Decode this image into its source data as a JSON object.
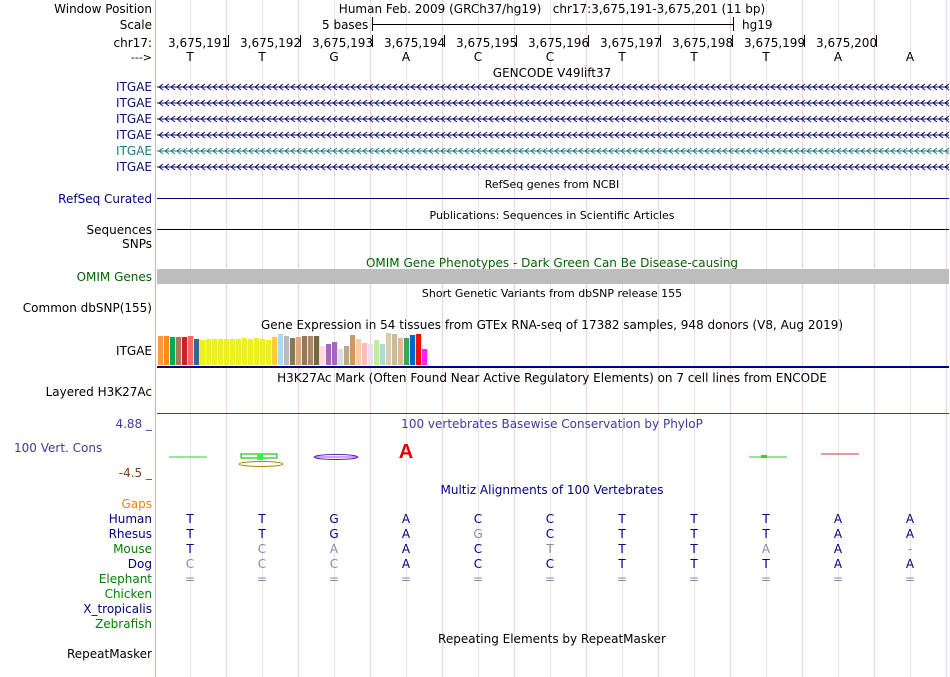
{
  "header": {
    "assembly": "Human Feb. 2009 (GRCh37/hg19)",
    "position": "chr17:3,675,191-3,675,201 (11 bp)",
    "scale_text": "5 bases",
    "scale_db": "hg19",
    "chrom": "chr17:"
  },
  "labels": {
    "window_position": "Window Position",
    "scale": "Scale",
    "chr": "chr17:",
    "arrow": "--->",
    "refseq": "RefSeq Curated",
    "sequences": "Sequences",
    "snps": "SNPs",
    "omim": "OMIM Genes",
    "common_dbsnp": "Common dbSNP(155)",
    "gtex": "ITGAE",
    "layered": "Layered H3K27Ac",
    "phylop_max": "4.88 _",
    "vert_cons": "100 Vert. Cons",
    "phylop_min": "-4.5 _",
    "gaps": "Gaps",
    "repeatmasker": "RepeatMasker"
  },
  "positions": [
    "3,675,191",
    "3,675,192",
    "3,675,193",
    "3,675,194",
    "3,675,195",
    "3,675,196",
    "3,675,197",
    "3,675,198",
    "3,675,199",
    "3,675,200"
  ],
  "bases": [
    "T",
    "T",
    "G",
    "A",
    "C",
    "C",
    "T",
    "T",
    "T",
    "A",
    "A"
  ],
  "track_titles": {
    "gencode": "GENCODE V49lift37",
    "refseq": "RefSeq genes from NCBI",
    "publications": "Publications: Sequences in Scientific Articles",
    "omim": "OMIM Gene Phenotypes - Dark Green Can Be Disease-causing",
    "dbsnp": "Short Genetic Variants from dbSNP release 155",
    "gtex": "Gene Expression in 54 tissues from GTEx RNA-seq of 17382 samples, 948 donors (V8, Aug 2019)",
    "h3k27ac": "H3K27Ac Mark (Often Found Near Active Regulatory Elements) on 7 cell lines from ENCODE",
    "phylop": "100 vertebrates Basewise Conservation by PhyloP",
    "multiz": "Multiz Alignments of 100 Vertebrates",
    "repeats": "Repeating Elements by RepeatMasker"
  },
  "gencode_genes": [
    {
      "name": "ITGAE",
      "color": "#0c0c78"
    },
    {
      "name": "ITGAE",
      "color": "#0c0c78"
    },
    {
      "name": "ITGAE",
      "color": "#0c0c78"
    },
    {
      "name": "ITGAE",
      "color": "#0c0c78"
    },
    {
      "name": "ITGAE",
      "color": "#1a7a8a"
    },
    {
      "name": "ITGAE",
      "color": "#0c0c78"
    }
  ],
  "gtex_bars": [
    {
      "color": "#ff9a3c",
      "value": 0.92
    },
    {
      "color": "#ff8c1a",
      "value": 0.92
    },
    {
      "color": "#00aa55",
      "value": 0.88
    },
    {
      "color": "#aa7755",
      "value": 0.88
    },
    {
      "color": "#cc2222",
      "value": 0.86
    },
    {
      "color": "#ff6666",
      "value": 0.9
    },
    {
      "color": "#336699",
      "value": 0.8
    },
    {
      "color": "#eeee22",
      "value": 0.78
    },
    {
      "color": "#eeee22",
      "value": 0.82
    },
    {
      "color": "#eeee22",
      "value": 0.8
    },
    {
      "color": "#eeee22",
      "value": 0.82
    },
    {
      "color": "#eeee22",
      "value": 0.8
    },
    {
      "color": "#eeee22",
      "value": 0.82
    },
    {
      "color": "#eeee22",
      "value": 0.8
    },
    {
      "color": "#eeee22",
      "value": 0.84
    },
    {
      "color": "#eeee22",
      "value": 0.82
    },
    {
      "color": "#eeee22",
      "value": 0.84
    },
    {
      "color": "#eeee22",
      "value": 0.8
    },
    {
      "color": "#eeee22",
      "value": 0.78
    },
    {
      "color": "#ffcc33",
      "value": 0.88
    },
    {
      "color": "#aaddee",
      "value": 0.96
    },
    {
      "color": "#bbbbbb",
      "value": 0.92
    },
    {
      "color": "#887755",
      "value": 0.84
    },
    {
      "color": "#ddaa77",
      "value": 0.88
    },
    {
      "color": "#997755",
      "value": 0.9
    },
    {
      "color": "#aa8866",
      "value": 0.9
    },
    {
      "color": "#776644",
      "value": 0.92
    },
    {
      "color": "#ffdddd",
      "value": 0.6
    },
    {
      "color": "#aa66bb",
      "value": 0.66
    },
    {
      "color": "#aa66bb",
      "value": 0.72
    },
    {
      "color": "#dddddd",
      "value": 0.5
    },
    {
      "color": "#bbaa88",
      "value": 0.6
    },
    {
      "color": "#cc9966",
      "value": 0.94
    },
    {
      "color": "#ffccaa",
      "value": 0.8
    },
    {
      "color": "#ffbbbb",
      "value": 0.68
    },
    {
      "color": "#eeddee",
      "value": 0.66
    },
    {
      "color": "#bbee99",
      "value": 0.78
    },
    {
      "color": "#aaddcc",
      "value": 0.66
    },
    {
      "color": "#ddccaa",
      "value": 1.0
    },
    {
      "color": "#ccbb99",
      "value": 0.96
    },
    {
      "color": "#ddbb99",
      "value": 0.84
    },
    {
      "color": "#33aa55",
      "value": 0.84
    },
    {
      "color": "#0066cc",
      "value": 0.94
    },
    {
      "color": "#ee1100",
      "value": 0.96
    },
    {
      "color": "#ff22ff",
      "value": 0.5
    }
  ],
  "species": [
    {
      "name": "Human",
      "color": "#000080",
      "bases": [
        "T",
        "T",
        "G",
        "A",
        "C",
        "C",
        "T",
        "T",
        "T",
        "A",
        "A"
      ],
      "dim": []
    },
    {
      "name": "Rhesus",
      "color": "#000080",
      "bases": [
        "T",
        "T",
        "G",
        "A",
        "G",
        "C",
        "T",
        "T",
        "T",
        "A",
        "A"
      ],
      "dim": [
        4
      ]
    },
    {
      "name": "Mouse",
      "color": "#008000",
      "bases": [
        "T",
        "C",
        "A",
        "A",
        "C",
        "T",
        "T",
        "T",
        "A",
        "A",
        "-"
      ],
      "dim": [
        1,
        2,
        5,
        8,
        10
      ]
    },
    {
      "name": "Dog",
      "color": "#000080",
      "bases": [
        "C",
        "C",
        "C",
        "A",
        "C",
        "C",
        "T",
        "T",
        "T",
        "A",
        "A"
      ],
      "dim": [
        0,
        1,
        2
      ]
    },
    {
      "name": "Elephant",
      "color": "#008000",
      "bases": [
        "=",
        "=",
        "=",
        "=",
        "=",
        "=",
        "=",
        "=",
        "=",
        "=",
        "="
      ],
      "dim": [
        0,
        1,
        2,
        3,
        4,
        5,
        6,
        7,
        8,
        9,
        10
      ]
    },
    {
      "name": "Chicken",
      "color": "#008000",
      "bases": [],
      "dim": []
    },
    {
      "name": "X_tropicalis",
      "color": "#000080",
      "bases": [],
      "dim": []
    },
    {
      "name": "Zebrafish",
      "color": "#008000",
      "bases": [],
      "dim": []
    }
  ],
  "colors": {
    "track_blue": "#000080",
    "omim_green": "#006400",
    "phylop_blue": "#3b3b9a",
    "phylop_min": "#7a3b1a",
    "gaps_orange": "#e08c00",
    "species_green": "#008000",
    "dim_base": "#8888aa"
  }
}
